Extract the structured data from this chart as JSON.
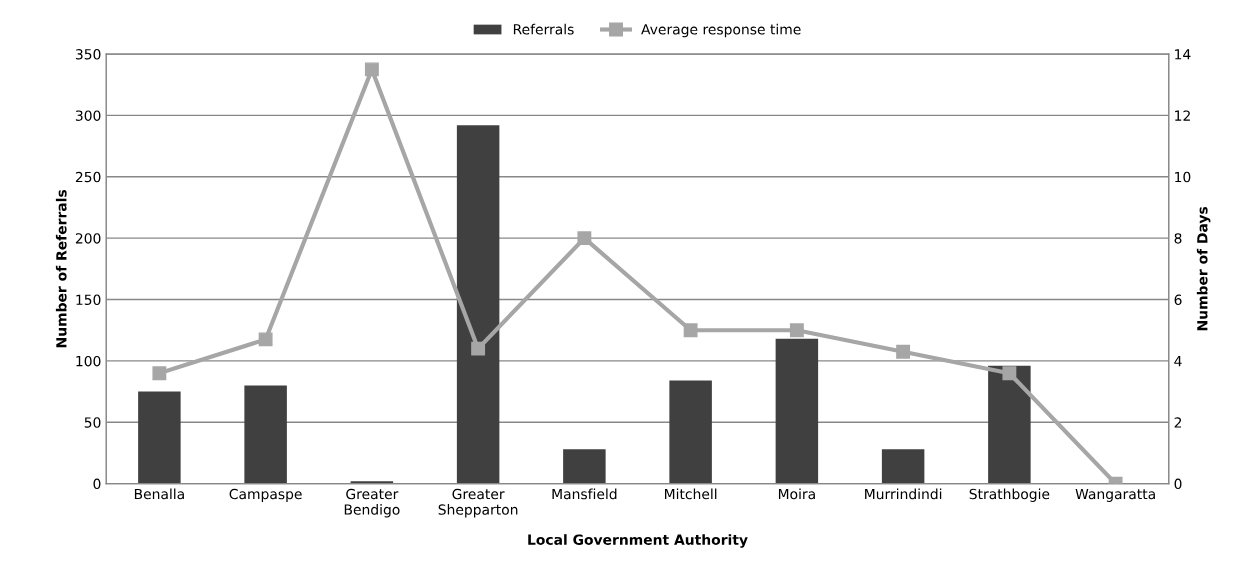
{
  "chart_data": {
    "type": "bar",
    "xlabel": "Local Government Authority",
    "ylabel": "Number of Referrals",
    "y2label": "Number of Days",
    "categories": [
      "Benalla",
      "Campaspe",
      "Greater\nBendigo",
      "Greater\nShepparton",
      "Mansfield",
      "Mitchell",
      "Moira",
      "Murrindindi",
      "Strathbogie",
      "Wangaratta"
    ],
    "series": [
      {
        "name": "Referrals",
        "color": "#404040",
        "values": [
          75,
          80,
          2,
          292,
          28,
          84,
          118,
          28,
          96,
          0
        ]
      },
      {
        "name": "Average response time",
        "type": "line",
        "axis": "y2",
        "color": "#a6a6a6",
        "marker": "square",
        "values": [
          3.6,
          4.7,
          13.5,
          4.4,
          8.0,
          5.0,
          5.0,
          4.3,
          3.6,
          0
        ]
      }
    ],
    "ylim": [
      0,
      350
    ],
    "yticks": [
      0,
      50,
      100,
      150,
      200,
      250,
      300,
      350
    ],
    "y2lim": [
      0,
      14
    ],
    "y2ticks": [
      0,
      2,
      4,
      6,
      8,
      10,
      12,
      14
    ],
    "grid": "y",
    "legend": "top"
  }
}
